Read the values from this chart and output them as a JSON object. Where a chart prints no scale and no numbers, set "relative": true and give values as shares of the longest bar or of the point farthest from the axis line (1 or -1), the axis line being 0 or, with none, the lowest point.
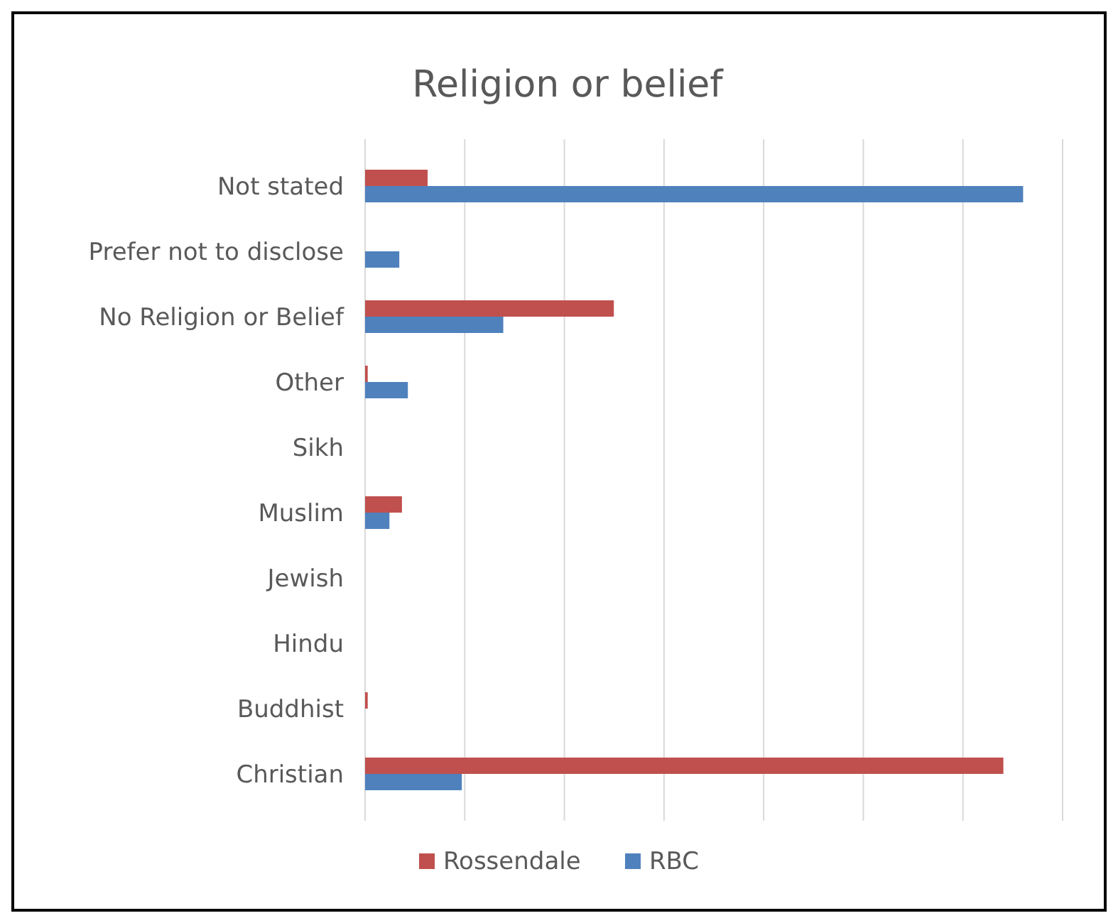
{
  "chart_data": {
    "type": "bar",
    "title": "Religion or belief",
    "orientation": "horizontal",
    "relative": true,
    "grid": "x",
    "legend": "bottom",
    "categories": [
      "Not stated",
      "Prefer not to disclose",
      "No Religion or Belief",
      "Other",
      "Sikh",
      "Muslim",
      "Jewish",
      "Hindu",
      "Buddhist",
      "Christian"
    ],
    "series": [
      {
        "name": "Rossendale",
        "color": "#c0504d",
        "values": [
          0.095,
          0,
          0.378,
          0.004,
          0,
          0.056,
          0,
          0,
          0.004,
          0.97
        ]
      },
      {
        "name": "RBC",
        "color": "#4f81bd",
        "values": [
          1,
          0.052,
          0.21,
          0.065,
          0,
          0.037,
          0,
          0,
          0,
          0.147
        ]
      }
    ]
  }
}
